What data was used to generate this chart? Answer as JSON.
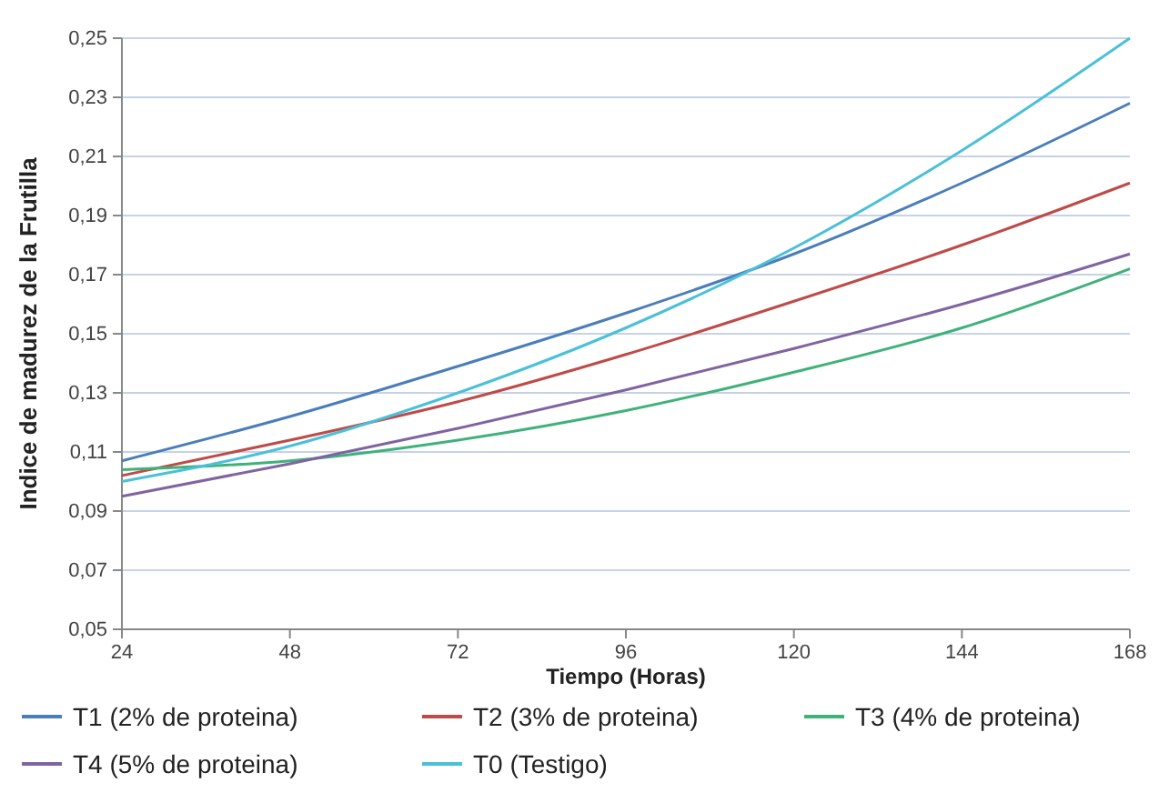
{
  "chart_data": {
    "type": "line",
    "xlabel": "Tiempo (Horas)",
    "ylabel": "Indice de madurez de la Frutilla",
    "x": [
      24,
      48,
      72,
      96,
      120,
      144,
      168
    ],
    "xlim": [
      24,
      168
    ],
    "xticks": [
      24,
      48,
      72,
      96,
      120,
      144,
      168
    ],
    "ylim": [
      0.05,
      0.25
    ],
    "yticks": [
      {
        "value": 0.05,
        "label": "0,05"
      },
      {
        "value": 0.07,
        "label": "0,07"
      },
      {
        "value": 0.09,
        "label": "0,09"
      },
      {
        "value": 0.11,
        "label": "0,11"
      },
      {
        "value": 0.13,
        "label": "0,13"
      },
      {
        "value": 0.15,
        "label": "0,15"
      },
      {
        "value": 0.17,
        "label": "0,17"
      },
      {
        "value": 0.19,
        "label": "0,19"
      },
      {
        "value": 0.21,
        "label": "0,21"
      },
      {
        "value": 0.23,
        "label": "0,23"
      },
      {
        "value": 0.25,
        "label": "0,25"
      }
    ],
    "grid": "y",
    "legend": "bottom",
    "marker": "none",
    "line_style": "solid",
    "series": [
      {
        "name": "T1 (2% de proteina)",
        "color": "#4a7ebb",
        "values": [
          0.107,
          0.122,
          0.139,
          0.157,
          0.177,
          0.201,
          0.228
        ]
      },
      {
        "name": "T2 (3% de proteina)",
        "color": "#be4b48",
        "values": [
          0.102,
          0.114,
          0.127,
          0.143,
          0.161,
          0.18,
          0.201
        ]
      },
      {
        "name": "T3 (4% de proteina)",
        "color": "#3fb27a",
        "values": [
          0.104,
          0.107,
          0.114,
          0.124,
          0.137,
          0.152,
          0.172
        ]
      },
      {
        "name": "T4 (5% de proteina)",
        "color": "#8064a2",
        "values": [
          0.095,
          0.106,
          0.118,
          0.131,
          0.145,
          0.16,
          0.177
        ]
      },
      {
        "name": "T0 (Testigo)",
        "color": "#4bc0d9",
        "values": [
          0.1,
          0.112,
          0.13,
          0.152,
          0.179,
          0.212,
          0.25
        ]
      }
    ]
  }
}
